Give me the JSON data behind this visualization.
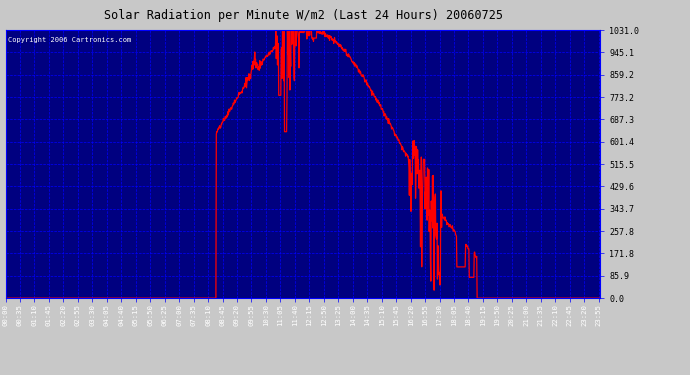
{
  "title": "Solar Radiation per Minute W/m2 (Last 24 Hours) 20060725",
  "copyright_text": "Copyright 2006 Cartronics.com",
  "background_color": "#000080",
  "line_color": "#ff0000",
  "grid_color": "#0000ff",
  "text_color": "#ffffff",
  "title_color": "#000000",
  "outer_bg": "#c8c8c8",
  "y_ticks": [
    0.0,
    85.9,
    171.8,
    257.8,
    343.7,
    429.6,
    515.5,
    601.4,
    687.3,
    773.2,
    859.2,
    945.1,
    1031.0
  ],
  "y_max": 1031.0,
  "x_labels": [
    "00:00",
    "00:35",
    "01:10",
    "01:45",
    "02:20",
    "02:55",
    "03:30",
    "04:05",
    "04:40",
    "05:15",
    "05:50",
    "06:25",
    "07:00",
    "07:35",
    "08:10",
    "08:45",
    "09:20",
    "09:55",
    "10:30",
    "11:05",
    "11:40",
    "12:15",
    "12:50",
    "13:25",
    "14:00",
    "14:35",
    "15:10",
    "15:45",
    "16:20",
    "16:55",
    "17:30",
    "18:05",
    "18:40",
    "19:15",
    "19:50",
    "20:25",
    "21:00",
    "21:35",
    "22:10",
    "22:45",
    "23:20",
    "23:55"
  ]
}
